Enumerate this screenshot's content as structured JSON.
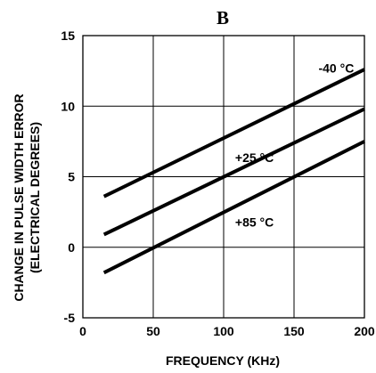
{
  "chart_data": {
    "type": "line",
    "title": "B",
    "xlabel": "FREQUENCY (KHz)",
    "ylabel": [
      "CHANGE IN PULSE WIDTH ERROR",
      "(ELECTRICAL DEGREES)"
    ],
    "xlim": [
      0,
      200
    ],
    "ylim": [
      -5,
      15
    ],
    "xticks": [
      0,
      50,
      100,
      150,
      200
    ],
    "yticks": [
      -5,
      0,
      5,
      10,
      15
    ],
    "grid": true,
    "series": [
      {
        "name": "-40 °C",
        "x": [
          15,
          200
        ],
        "y": [
          3.6,
          12.6
        ]
      },
      {
        "name": "+25 °C",
        "x": [
          15,
          200
        ],
        "y": [
          0.9,
          9.8
        ]
      },
      {
        "name": "+85 °C",
        "x": [
          15,
          200
        ],
        "y": [
          -1.8,
          7.5
        ]
      }
    ]
  }
}
